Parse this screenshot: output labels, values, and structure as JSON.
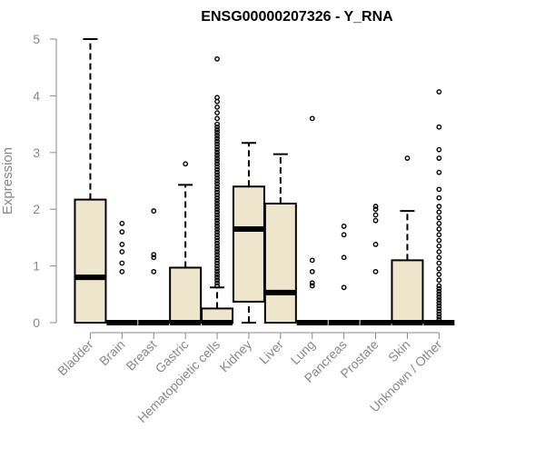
{
  "chart_data": {
    "type": "box",
    "title": "ENSG00000207326 - Y_RNA",
    "xlabel": "",
    "ylabel": "Expression",
    "ylim": [
      0,
      5
    ],
    "yticks": [
      0,
      1,
      2,
      3,
      4,
      5
    ],
    "grid": false,
    "box_fill": "#ede6cc",
    "categories": [
      "Bladder",
      "Brain",
      "Breast",
      "Gastric",
      "Hematopoietic cells",
      "Kidney",
      "Liver",
      "Lung",
      "Pancreas",
      "Prostate",
      "Skin",
      "Unknown / Other"
    ],
    "boxes": [
      {
        "category": "Bladder",
        "whisker_low": 0,
        "q1": 0,
        "median": 0.8,
        "q3": 2.17,
        "whisker_high": 5.0,
        "outliers": []
      },
      {
        "category": "Brain",
        "whisker_low": 0,
        "q1": 0,
        "median": 0,
        "q3": 0,
        "whisker_high": 0,
        "outliers": [
          0.9,
          1.05,
          1.25,
          1.38,
          1.6,
          1.75
        ]
      },
      {
        "category": "Breast",
        "whisker_low": 0,
        "q1": 0,
        "median": 0,
        "q3": 0,
        "whisker_high": 0,
        "outliers": [
          0.9,
          1.15,
          1.2,
          1.97
        ]
      },
      {
        "category": "Gastric",
        "whisker_low": 0,
        "q1": 0,
        "median": 0,
        "q3": 0.97,
        "whisker_high": 2.43,
        "outliers": [
          2.8
        ]
      },
      {
        "category": "Hematopoietic cells",
        "whisker_low": 0,
        "q1": 0,
        "median": 0,
        "q3": 0.25,
        "whisker_high": 0.62,
        "outliers": [
          0.65,
          0.7,
          0.75,
          0.8,
          0.85,
          0.9,
          0.95,
          1.0,
          1.05,
          1.1,
          1.15,
          1.2,
          1.25,
          1.3,
          1.35,
          1.4,
          1.45,
          1.5,
          1.55,
          1.6,
          1.65,
          1.7,
          1.75,
          1.8,
          1.85,
          1.9,
          1.95,
          2.0,
          2.05,
          2.1,
          2.15,
          2.2,
          2.25,
          2.3,
          2.35,
          2.4,
          2.45,
          2.5,
          2.55,
          2.6,
          2.65,
          2.7,
          2.75,
          2.8,
          2.85,
          2.9,
          2.95,
          3.0,
          3.05,
          3.1,
          3.15,
          3.2,
          3.25,
          3.3,
          3.35,
          3.4,
          3.45,
          3.5,
          3.6,
          3.7,
          3.8,
          3.9,
          3.97,
          4.65
        ]
      },
      {
        "category": "Kidney",
        "whisker_low": 0,
        "q1": 0.37,
        "median": 1.65,
        "q3": 2.4,
        "whisker_high": 3.17,
        "outliers": []
      },
      {
        "category": "Liver",
        "whisker_low": 0,
        "q1": 0,
        "median": 0.53,
        "q3": 2.1,
        "whisker_high": 2.97,
        "outliers": []
      },
      {
        "category": "Lung",
        "whisker_low": 0,
        "q1": 0,
        "median": 0,
        "q3": 0,
        "whisker_high": 0,
        "outliers": [
          0.65,
          0.7,
          0.9,
          1.1,
          3.6
        ]
      },
      {
        "category": "Pancreas",
        "whisker_low": 0,
        "q1": 0,
        "median": 0,
        "q3": 0,
        "whisker_high": 0,
        "outliers": [
          0.62,
          1.15,
          1.55,
          1.7
        ]
      },
      {
        "category": "Prostate",
        "whisker_low": 0,
        "q1": 0,
        "median": 0,
        "q3": 0,
        "whisker_high": 0,
        "outliers": [
          0.9,
          1.38,
          1.8,
          1.9,
          2.0,
          2.05
        ]
      },
      {
        "category": "Skin",
        "whisker_low": 0,
        "q1": 0,
        "median": 0,
        "q3": 1.1,
        "whisker_high": 1.97,
        "outliers": [
          2.9
        ]
      },
      {
        "category": "Unknown / Other",
        "whisker_low": 0,
        "q1": 0,
        "median": 0,
        "q3": 0,
        "whisker_high": 0,
        "outliers": [
          0.05,
          0.1,
          0.15,
          0.2,
          0.25,
          0.3,
          0.35,
          0.4,
          0.45,
          0.5,
          0.55,
          0.6,
          0.65,
          0.75,
          0.85,
          0.95,
          1.05,
          1.15,
          1.25,
          1.35,
          1.45,
          1.55,
          1.65,
          1.75,
          1.85,
          1.95,
          2.05,
          2.2,
          2.35,
          2.65,
          2.9,
          3.05,
          3.45,
          4.07
        ]
      }
    ]
  }
}
